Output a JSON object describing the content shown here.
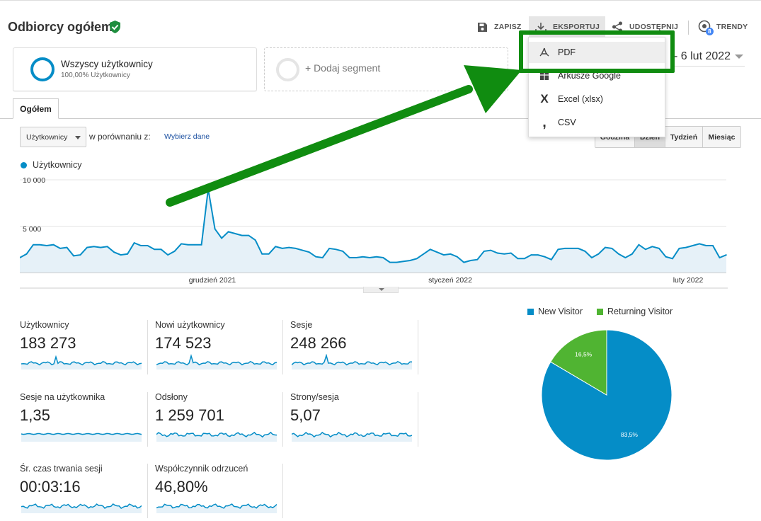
{
  "header": {
    "title": "Odbiorcy ogółem",
    "toolbar": {
      "save": "ZAPISZ",
      "export": "EKSPORTUJ",
      "share": "UDOSTĘPNIJ",
      "trends": "TRENDY",
      "trends_badge": "8"
    }
  },
  "export_menu": {
    "items": [
      {
        "label": "PDF",
        "icon": "pdf-icon"
      },
      {
        "label": "Arkusze Google",
        "icon": "sheets-icon"
      },
      {
        "label": "Excel (xlsx)",
        "icon": "excel-icon"
      },
      {
        "label": "CSV",
        "icon": "csv-icon"
      }
    ]
  },
  "segments": {
    "active": {
      "name": "Wszyscy użytkownicy",
      "sub": "100,00% Użytkownicy"
    },
    "add_label": "+ Dodaj segment"
  },
  "date_range": "- 6 lut 2022",
  "tabs": [
    "Ogółem"
  ],
  "controls": {
    "metric_select": "Użytkownicy",
    "compare_label": "w porównaniu z:",
    "choose_data": "Wybierz dane",
    "periods": [
      {
        "label": "Godzina",
        "active": false
      },
      {
        "label": "Dzień",
        "active": true
      },
      {
        "label": "Tydzień",
        "active": false
      },
      {
        "label": "Miesiąc",
        "active": false
      }
    ]
  },
  "colors": {
    "accent": "#058dc7",
    "returning": "#50b432",
    "annotation": "#108c10"
  },
  "chart_data": [
    {
      "type": "line",
      "series": [
        {
          "name": "Użytkownicy",
          "values": [
            1600,
            2000,
            3000,
            3000,
            2900,
            3000,
            2600,
            2700,
            1800,
            1900,
            2700,
            2800,
            2700,
            2800,
            2200,
            1900,
            2000,
            3200,
            2900,
            2900,
            2500,
            2500,
            1900,
            2300,
            3100,
            3000,
            3000,
            3000,
            9000,
            4700,
            3700,
            4400,
            4200,
            4000,
            4000,
            3500,
            2000,
            2000,
            2800,
            2600,
            2700,
            2600,
            2400,
            2200,
            1700,
            1600,
            2600,
            2500,
            2300,
            1600,
            1600,
            1700,
            1600,
            1700,
            1600,
            1100,
            1100,
            1200,
            1300,
            1500,
            2000,
            2500,
            2200,
            1900,
            2000,
            1700,
            1100,
            1300,
            1400,
            2300,
            2400,
            2100,
            2000,
            2100,
            1500,
            1500,
            1900,
            1900,
            1700,
            1400,
            2500,
            2600,
            2600,
            2600,
            2300,
            1600,
            2000,
            2700,
            2600,
            2000,
            1600,
            2000,
            3000,
            2500,
            2800,
            2600,
            1700,
            1500,
            2600,
            2700,
            2900,
            3100,
            2900,
            2900,
            1600,
            1900
          ]
        }
      ],
      "y_ticks": [
        "10 000",
        "5 000"
      ],
      "ylim": [
        0,
        10000
      ],
      "x_ticks": [
        "grudzień 2021",
        "styczeń 2022",
        "luty 2022"
      ]
    },
    {
      "type": "pie",
      "categories": [
        "New Visitor",
        "Returning Visitor"
      ],
      "values": [
        83.5,
        16.5
      ],
      "labels": [
        "83,5%",
        "16,5%"
      ]
    }
  ],
  "stats": [
    {
      "label": "Użytkownicy",
      "value": "183 273"
    },
    {
      "label": "Nowi użytkownicy",
      "value": "174 523"
    },
    {
      "label": "Sesje",
      "value": "248 266"
    },
    {
      "label": "Sesje na użytkownika",
      "value": "1,35"
    },
    {
      "label": "Odsłony",
      "value": "1 259 701"
    },
    {
      "label": "Strony/sesja",
      "value": "5,07"
    },
    {
      "label": "Śr. czas trwania sesji",
      "value": "00:03:16"
    },
    {
      "label": "Współczynnik odrzuceń",
      "value": "46,80%"
    }
  ]
}
